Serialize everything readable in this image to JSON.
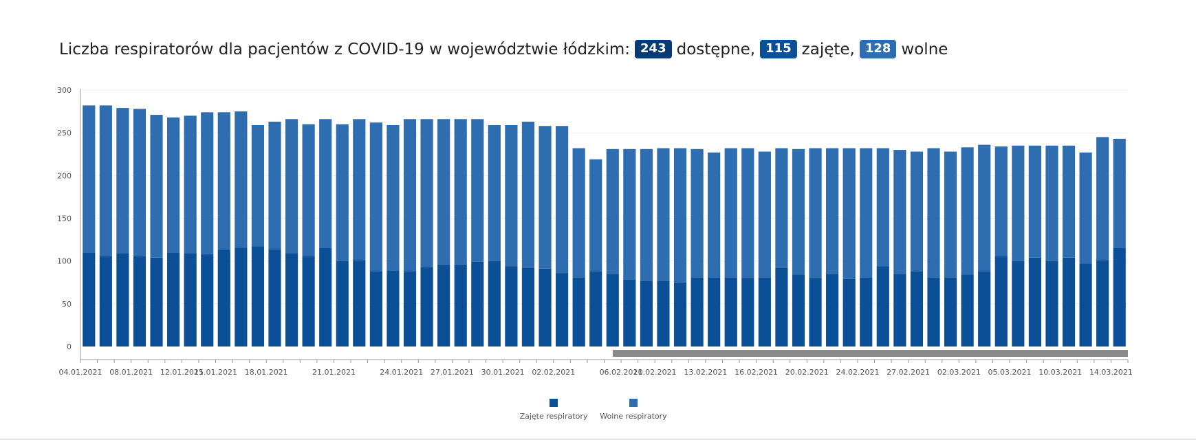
{
  "title": {
    "prefix": "Liczba respiratorów dla pacjentów z COVID-19 w województwie łódzkim:",
    "available_value": "243",
    "available_label": "dostępne,",
    "occupied_value": "115",
    "occupied_label": "zajęte,",
    "free_value": "128",
    "free_label": "wolne"
  },
  "colors": {
    "occupied": "#0b4f96",
    "free": "#2e6daf",
    "badge_available": "#083b73",
    "badge_occupied": "#0b4f96",
    "badge_free": "#2e6daf",
    "scrollbar": "#8a8a8a"
  },
  "chart_data": {
    "type": "bar",
    "stacked": true,
    "ylim": [
      0,
      300
    ],
    "yticks": [
      0,
      50,
      100,
      150,
      200,
      250,
      300
    ],
    "grid": true,
    "legend_position": "bottom-center",
    "x_tick_labels": [
      "04.01.2021",
      "08.01.2021",
      "12.01.2021",
      "15.01.2021",
      "18.01.2021",
      "21.01.2021",
      "24.01.2021",
      "27.01.2021",
      "30.01.2021",
      "02.02.2021",
      "06.02.2021",
      "10.02.2021",
      "13.02.2021",
      "16.02.2021",
      "20.02.2021",
      "24.02.2021",
      "27.02.2021",
      "02.03.2021",
      "05.03.2021",
      "10.03.2021",
      "14.03.2021"
    ],
    "x_tick_label_bar_index": [
      0,
      3,
      6,
      8,
      11,
      15,
      19,
      22,
      25,
      28,
      32,
      34,
      37,
      40,
      43,
      46,
      49,
      52,
      55,
      58,
      61
    ],
    "series": [
      {
        "name": "Zajęte respiratory",
        "values": [
          110,
          106,
          109,
          106,
          104,
          110,
          109,
          108,
          113,
          116,
          117,
          114,
          109,
          106,
          115,
          100,
          101,
          88,
          89,
          88,
          93,
          96,
          96,
          99,
          100,
          94,
          92,
          91,
          86,
          81,
          88,
          85,
          78,
          77,
          77,
          75,
          81,
          81,
          81,
          80,
          81,
          92,
          84,
          80,
          85,
          79,
          81,
          94,
          85,
          88,
          81,
          81,
          84,
          88,
          106,
          100,
          104,
          100,
          104,
          97,
          101,
          115
        ]
      },
      {
        "name": "Wolne respiratory",
        "values": [
          172,
          176,
          170,
          172,
          167,
          158,
          161,
          166,
          161,
          159,
          142,
          149,
          157,
          154,
          151,
          160,
          165,
          174,
          170,
          178,
          173,
          170,
          170,
          167,
          159,
          165,
          171,
          167,
          172,
          151,
          131,
          146,
          153,
          154,
          155,
          157,
          150,
          146,
          151,
          152,
          147,
          140,
          147,
          152,
          147,
          153,
          151,
          138,
          145,
          140,
          151,
          147,
          149,
          148,
          128,
          135,
          131,
          135,
          131,
          130,
          144,
          128
        ]
      }
    ]
  },
  "legend": {
    "occupied_label": "Zajęte respiratory",
    "free_label": "Wolne respiratory"
  }
}
